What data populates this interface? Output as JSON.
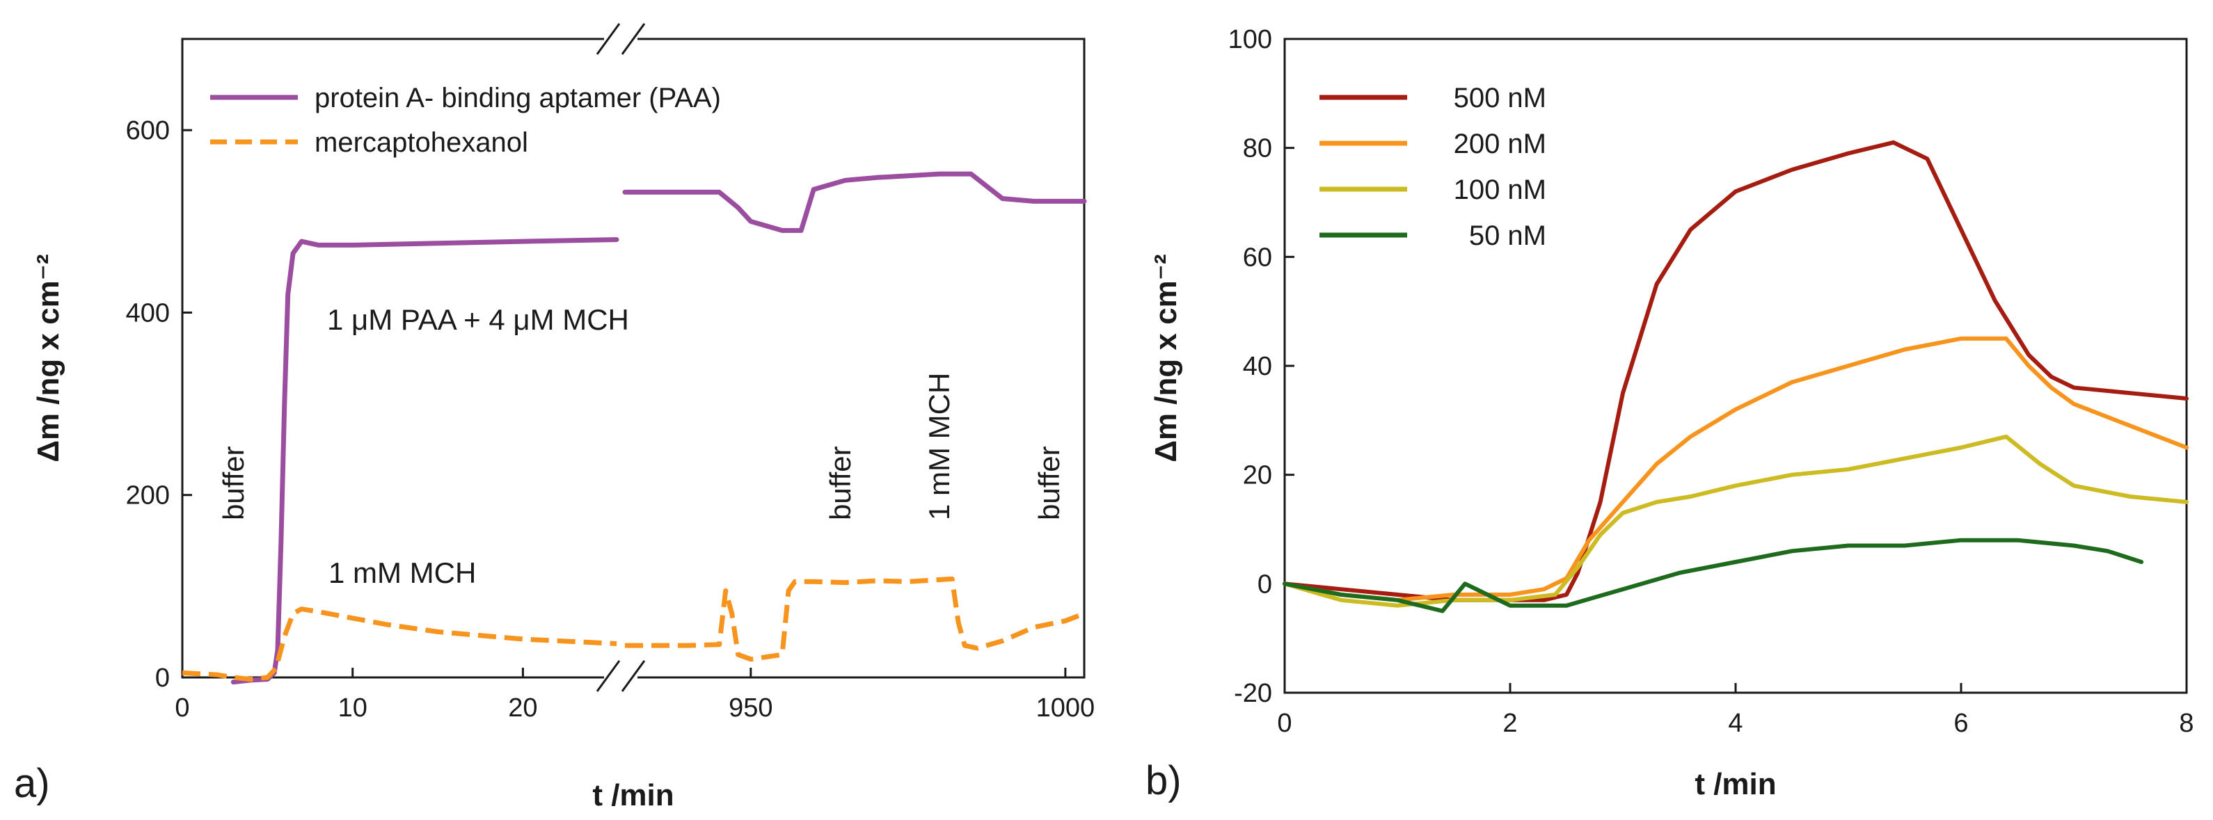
{
  "chart_data": [
    {
      "panel_label": "a)",
      "type": "line",
      "xlabel": "t /min",
      "ylabel": "Δm /ng x cm⁻²",
      "ylim": [
        0,
        700
      ],
      "y_ticks": [
        0,
        200,
        400,
        600
      ],
      "y_tick_labels": [
        "0",
        "200",
        "400",
        "600"
      ],
      "x_broken_axis": true,
      "x_segments": [
        {
          "range": [
            0,
            25.5
          ],
          "ticks": [
            0,
            10,
            20
          ],
          "tick_labels": [
            "0",
            "10",
            "20"
          ]
        },
        {
          "range": [
            930,
            1003
          ],
          "ticks": [
            950,
            1000
          ],
          "tick_labels": [
            "950",
            "1000"
          ]
        }
      ],
      "legend": [
        {
          "label": "protein A- binding aptamer (PAA)",
          "color": "#9b4ea0",
          "dash": "solid"
        },
        {
          "label": "mercaptohexanol",
          "color": "#f7941d",
          "dash": "dashed"
        }
      ],
      "annotations": {
        "buffer1": "buffer",
        "paa_mch": "1 μM PAA + 4 μM MCH",
        "mch": "1 mM MCH",
        "buffer2": "buffer",
        "mch_1mm": "1 mM MCH",
        "buffer3": "buffer"
      },
      "series": [
        {
          "name": "protein A- binding aptamer (PAA)",
          "color": "#9b4ea0",
          "segments": [
            {
              "x": [
                3.0,
                4.0,
                5.0,
                5.4,
                5.6,
                5.8,
                6.0,
                6.2,
                6.5,
                7.0,
                8.0,
                10,
                15,
                20,
                25.5
              ],
              "y": [
                -5,
                -3,
                -2,
                5,
                30,
                150,
                300,
                420,
                465,
                478,
                474,
                474,
                476,
                478,
                480
              ]
            },
            {
              "x": [
                930,
                940,
                945,
                948,
                950,
                955,
                958,
                960,
                965,
                970,
                975,
                980,
                985,
                990,
                995,
                1003
              ],
              "y": [
                532,
                532,
                532,
                515,
                500,
                490,
                490,
                535,
                545,
                548,
                550,
                552,
                552,
                525,
                522,
                522
              ]
            }
          ]
        },
        {
          "name": "mercaptohexanol",
          "color": "#f7941d",
          "segments": [
            {
              "x": [
                0,
                2,
                3,
                4,
                5,
                5.5,
                6.0,
                6.5,
                7,
                8,
                10,
                12,
                15,
                20,
                25.5
              ],
              "y": [
                5,
                3,
                0,
                -2,
                0,
                10,
                45,
                70,
                75,
                72,
                65,
                58,
                50,
                42,
                37
              ]
            },
            {
              "x": [
                930,
                940,
                945,
                946,
                947,
                948,
                950,
                955,
                956,
                957,
                960,
                965,
                970,
                975,
                982,
                983,
                984,
                986,
                990,
                995,
                1000,
                1003
              ],
              "y": [
                35,
                35,
                36,
                95,
                70,
                25,
                20,
                25,
                95,
                105,
                105,
                104,
                106,
                105,
                108,
                60,
                35,
                32,
                40,
                55,
                62,
                70
              ]
            }
          ]
        }
      ]
    },
    {
      "panel_label": "b)",
      "type": "line",
      "xlabel": "t /min",
      "ylabel": "Δm /ng x cm⁻²",
      "xlim": [
        0,
        8
      ],
      "ylim": [
        -20,
        100
      ],
      "x_ticks": [
        0,
        2,
        4,
        6,
        8
      ],
      "x_tick_labels": [
        "0",
        "2",
        "4",
        "6",
        "8"
      ],
      "y_ticks": [
        -20,
        0,
        20,
        40,
        60,
        80,
        100
      ],
      "y_tick_labels": [
        "-20",
        "0",
        "20",
        "40",
        "60",
        "80",
        "100"
      ],
      "legend": [
        {
          "label": "500 nM",
          "color": "#a51c10"
        },
        {
          "label": "200 nM",
          "color": "#f7941d"
        },
        {
          "label": "100 nM",
          "color": "#cdbb24"
        },
        {
          "label": "50 nM",
          "color": "#1e6b1e"
        }
      ],
      "series": [
        {
          "name": "500 nM",
          "color": "#a51c10",
          "x": [
            0,
            0.5,
            1,
            1.5,
            2,
            2.3,
            2.5,
            2.6,
            2.8,
            3.0,
            3.3,
            3.6,
            4.0,
            4.5,
            5.0,
            5.4,
            5.7,
            6.0,
            6.3,
            6.6,
            6.8,
            7.0,
            7.5,
            8.0
          ],
          "y": [
            0,
            -1,
            -2,
            -3,
            -3,
            -3,
            -2,
            2,
            15,
            35,
            55,
            65,
            72,
            76,
            79,
            81,
            78,
            65,
            52,
            42,
            38,
            36,
            35,
            34
          ]
        },
        {
          "name": "200 nM",
          "color": "#f7941d",
          "x": [
            0,
            0.5,
            1,
            1.5,
            2,
            2.3,
            2.5,
            2.7,
            3.0,
            3.3,
            3.6,
            4.0,
            4.5,
            5.0,
            5.5,
            6.0,
            6.4,
            6.6,
            6.8,
            7.0,
            7.5,
            8.0
          ],
          "y": [
            0,
            -2,
            -3,
            -2,
            -2,
            -1,
            1,
            8,
            15,
            22,
            27,
            32,
            37,
            40,
            43,
            45,
            45,
            40,
            36,
            33,
            29,
            25
          ]
        },
        {
          "name": "100 nM",
          "color": "#cdbb24",
          "x": [
            0,
            0.5,
            1,
            1.5,
            2,
            2.4,
            2.6,
            2.8,
            3.0,
            3.3,
            3.6,
            4.0,
            4.5,
            5.0,
            5.5,
            6.0,
            6.4,
            6.7,
            7.0,
            7.5,
            8.0
          ],
          "y": [
            0,
            -3,
            -4,
            -3,
            -3,
            -2,
            3,
            9,
            13,
            15,
            16,
            18,
            20,
            21,
            23,
            25,
            27,
            22,
            18,
            16,
            15
          ]
        },
        {
          "name": "50 nM",
          "color": "#1e6b1e",
          "x": [
            0,
            0.5,
            1,
            1.4,
            1.6,
            2,
            2.5,
            3,
            3.5,
            4,
            4.5,
            5,
            5.5,
            6,
            6.5,
            7,
            7.3,
            7.6
          ],
          "y": [
            0,
            -2,
            -3,
            -5,
            0,
            -4,
            -4,
            -1,
            2,
            4,
            6,
            7,
            7,
            8,
            8,
            7,
            6,
            4
          ]
        }
      ]
    }
  ]
}
